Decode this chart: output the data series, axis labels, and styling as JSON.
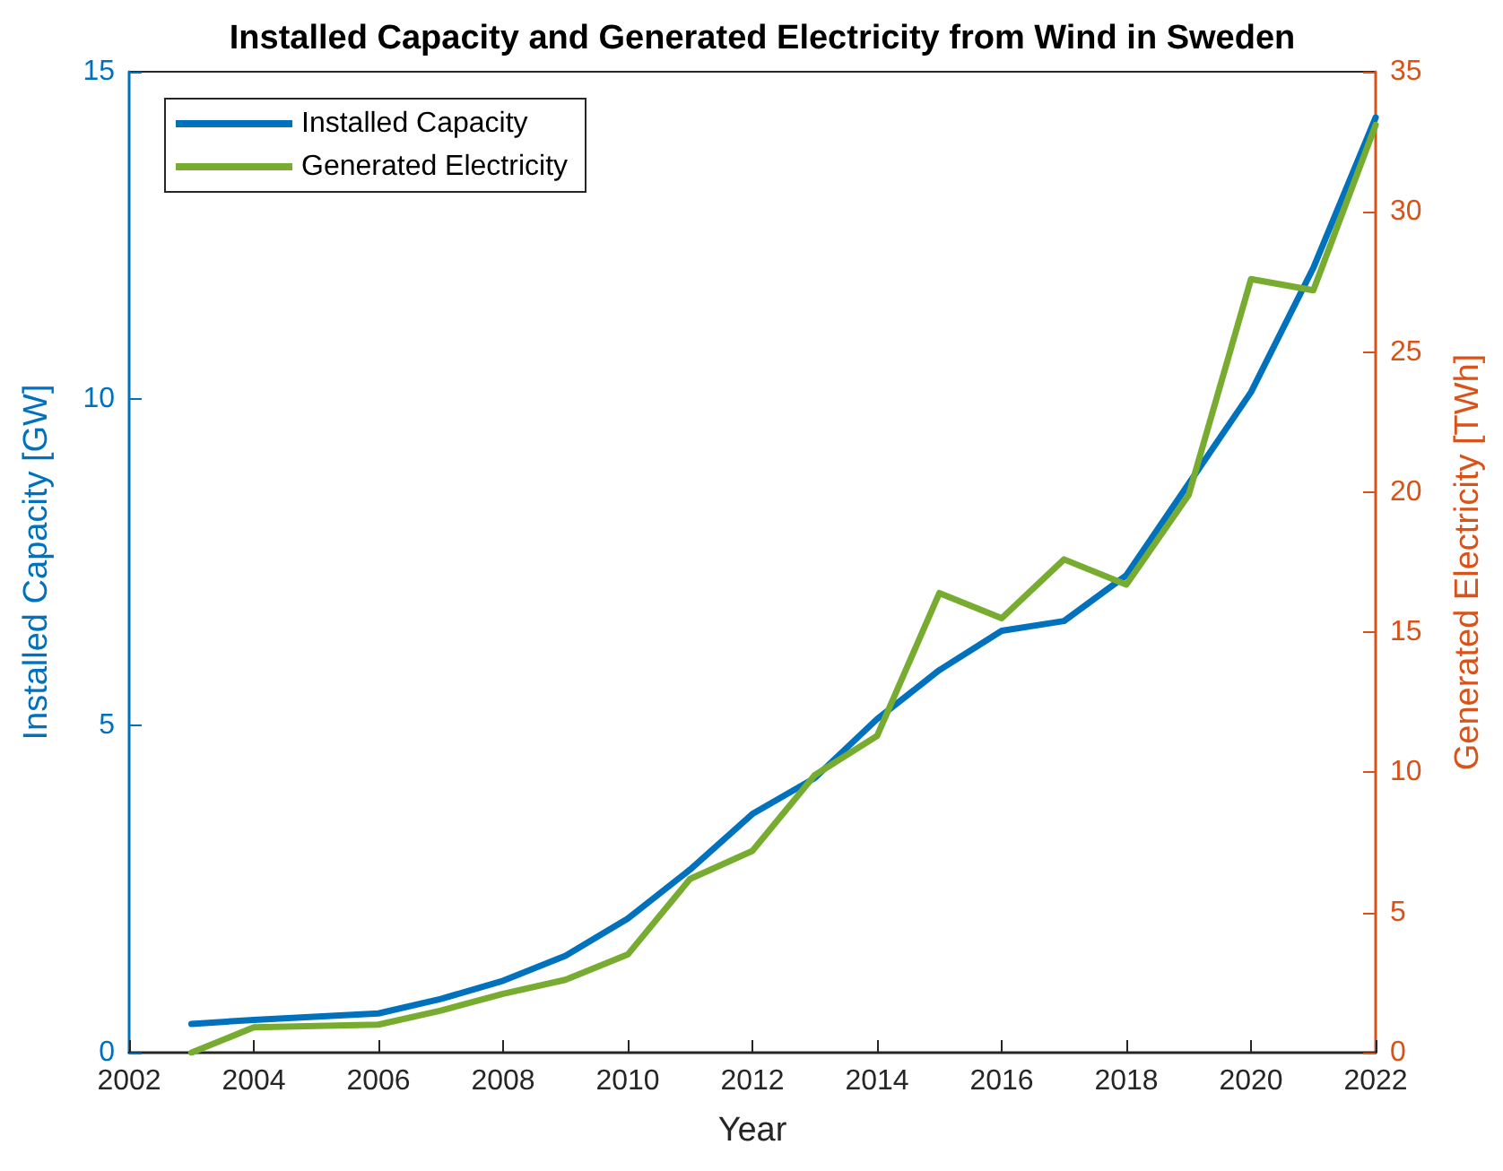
{
  "chart_data": {
    "type": "line",
    "title": "Installed Capacity and Generated Electricity from Wind in Sweden",
    "xlabel": "Year",
    "ylabel": "Installed Capacity [GW]",
    "y2label": "Generated Electricity [TWh]",
    "xlim": [
      2002,
      2022
    ],
    "xticks": [
      2002,
      2004,
      2006,
      2008,
      2010,
      2012,
      2014,
      2016,
      2018,
      2020,
      2022
    ],
    "ylim": [
      0,
      15
    ],
    "yticks": [
      0,
      5,
      10,
      15
    ],
    "y2lim": [
      0,
      35
    ],
    "y2ticks": [
      0,
      5,
      10,
      15,
      20,
      25,
      30,
      35
    ],
    "legend": "top left",
    "grid": false,
    "marker": "none",
    "line_style": "solid",
    "series": [
      {
        "name": "Installed Capacity",
        "color": "#0072bd",
        "x": [
          2003,
          2004,
          2006,
          2007,
          2008,
          2009,
          2010,
          2011,
          2012,
          2013,
          2014,
          2015,
          2016,
          2017,
          2018,
          2019,
          2020,
          2021,
          2022
        ],
        "values": [
          0.44,
          0.5,
          0.6,
          0.82,
          1.1,
          1.48,
          2.05,
          2.8,
          3.65,
          4.2,
          5.1,
          5.85,
          6.45,
          6.6,
          7.3,
          8.7,
          10.1,
          12.0,
          14.3
        ]
      },
      {
        "name": "Generated Electricity",
        "color": "#77ac30",
        "axis": "y2",
        "x": [
          2003,
          2004,
          2006,
          2007,
          2008,
          2009,
          2010,
          2011,
          2012,
          2013,
          2014,
          2015,
          2016,
          2017,
          2018,
          2019,
          2020,
          2021,
          2022
        ],
        "values": [
          0,
          0.9,
          1.0,
          1.5,
          2.1,
          2.6,
          3.5,
          6.2,
          7.2,
          9.9,
          11.3,
          16.4,
          15.5,
          17.6,
          16.7,
          19.9,
          27.6,
          27.2,
          33.1
        ]
      }
    ]
  }
}
